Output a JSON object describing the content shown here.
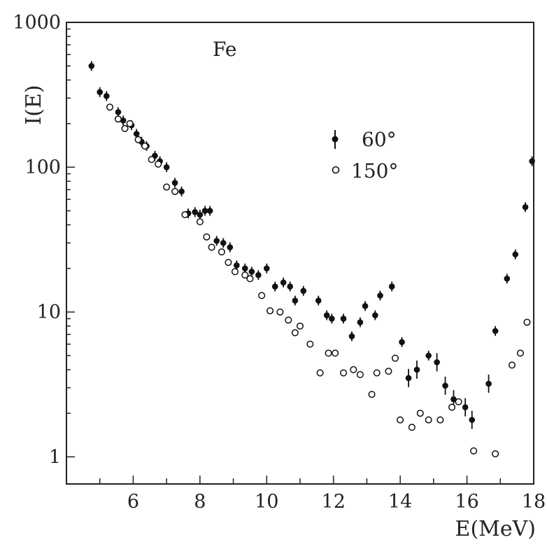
{
  "chart_data": {
    "type": "scatter",
    "annotation": "Fe",
    "xlabel": "E(MeV)",
    "ylabel": "I(E)",
    "xlim": [
      4.0,
      18.0
    ],
    "ylim": [
      0.65,
      1000
    ],
    "yscale": "log",
    "x_ticks": [
      6,
      8,
      10,
      12,
      14,
      16,
      18
    ],
    "x_tick_labels": [
      "6",
      "8",
      "10",
      "12",
      "14",
      "16",
      "18"
    ],
    "y_ticks": [
      1,
      10,
      100,
      1000
    ],
    "y_tick_labels": [
      "1",
      "10",
      "100",
      "1000"
    ],
    "grid": false,
    "legend_position": "upper-right",
    "series": [
      {
        "name": "60°",
        "marker": "filled-circle-with-errorbar",
        "color": "#111111",
        "points": [
          [
            4.75,
            500
          ],
          [
            5.0,
            330
          ],
          [
            5.2,
            310
          ],
          [
            5.55,
            240
          ],
          [
            5.7,
            210
          ],
          [
            5.95,
            195
          ],
          [
            6.1,
            170
          ],
          [
            6.25,
            150
          ],
          [
            6.4,
            140
          ],
          [
            6.65,
            120
          ],
          [
            6.8,
            110
          ],
          [
            7.0,
            100
          ],
          [
            7.25,
            78
          ],
          [
            7.45,
            68
          ],
          [
            7.65,
            48
          ],
          [
            7.85,
            49
          ],
          [
            8.0,
            47
          ],
          [
            8.15,
            50
          ],
          [
            8.3,
            50
          ],
          [
            8.5,
            31
          ],
          [
            8.7,
            30
          ],
          [
            8.9,
            28
          ],
          [
            9.1,
            21
          ],
          [
            9.35,
            20
          ],
          [
            9.55,
            19
          ],
          [
            9.75,
            18
          ],
          [
            10.0,
            20
          ],
          [
            10.25,
            15
          ],
          [
            10.5,
            16
          ],
          [
            10.7,
            15
          ],
          [
            10.85,
            12
          ],
          [
            11.1,
            14
          ],
          [
            11.55,
            12
          ],
          [
            11.8,
            9.5
          ],
          [
            11.95,
            9.0
          ],
          [
            12.3,
            9.0
          ],
          [
            12.55,
            6.8
          ],
          [
            12.8,
            8.5
          ],
          [
            12.95,
            11
          ],
          [
            13.25,
            9.5
          ],
          [
            13.4,
            13
          ],
          [
            13.75,
            15
          ],
          [
            14.05,
            6.2
          ],
          [
            14.25,
            3.5
          ],
          [
            14.5,
            4.0
          ],
          [
            14.85,
            5.0
          ],
          [
            15.1,
            4.5
          ],
          [
            15.35,
            3.1
          ],
          [
            15.6,
            2.5
          ],
          [
            15.95,
            2.2
          ],
          [
            16.15,
            1.8
          ],
          [
            16.65,
            3.2
          ],
          [
            16.85,
            7.4
          ],
          [
            17.2,
            17
          ],
          [
            17.45,
            25
          ],
          [
            17.75,
            53
          ],
          [
            17.95,
            110
          ]
        ]
      },
      {
        "name": "150°",
        "marker": "open-circle",
        "color": "#111111",
        "points": [
          [
            5.3,
            260
          ],
          [
            5.55,
            215
          ],
          [
            5.75,
            185
          ],
          [
            5.9,
            200
          ],
          [
            6.15,
            155
          ],
          [
            6.35,
            140
          ],
          [
            6.55,
            113
          ],
          [
            6.75,
            105
          ],
          [
            7.0,
            73
          ],
          [
            7.25,
            68
          ],
          [
            7.55,
            47
          ],
          [
            8.0,
            42
          ],
          [
            8.2,
            33
          ],
          [
            8.35,
            28
          ],
          [
            8.65,
            26
          ],
          [
            8.85,
            22
          ],
          [
            9.05,
            19
          ],
          [
            9.35,
            18
          ],
          [
            9.5,
            17
          ],
          [
            9.85,
            13
          ],
          [
            10.1,
            10.2
          ],
          [
            10.4,
            10.0
          ],
          [
            10.65,
            8.8
          ],
          [
            10.85,
            7.2
          ],
          [
            11.0,
            8.0
          ],
          [
            11.3,
            6.0
          ],
          [
            11.6,
            3.8
          ],
          [
            11.85,
            5.2
          ],
          [
            12.05,
            5.2
          ],
          [
            12.3,
            3.8
          ],
          [
            12.6,
            4.0
          ],
          [
            12.8,
            3.7
          ],
          [
            13.15,
            2.7
          ],
          [
            13.3,
            3.8
          ],
          [
            13.65,
            3.9
          ],
          [
            13.85,
            4.8
          ],
          [
            14.0,
            1.8
          ],
          [
            14.35,
            1.6
          ],
          [
            14.6,
            2.0
          ],
          [
            14.85,
            1.8
          ],
          [
            15.2,
            1.8
          ],
          [
            15.55,
            2.2
          ],
          [
            15.75,
            2.4
          ],
          [
            16.2,
            1.1
          ],
          [
            16.85,
            1.05
          ],
          [
            17.35,
            4.3
          ],
          [
            17.6,
            5.2
          ],
          [
            17.8,
            8.5
          ]
        ]
      }
    ]
  }
}
